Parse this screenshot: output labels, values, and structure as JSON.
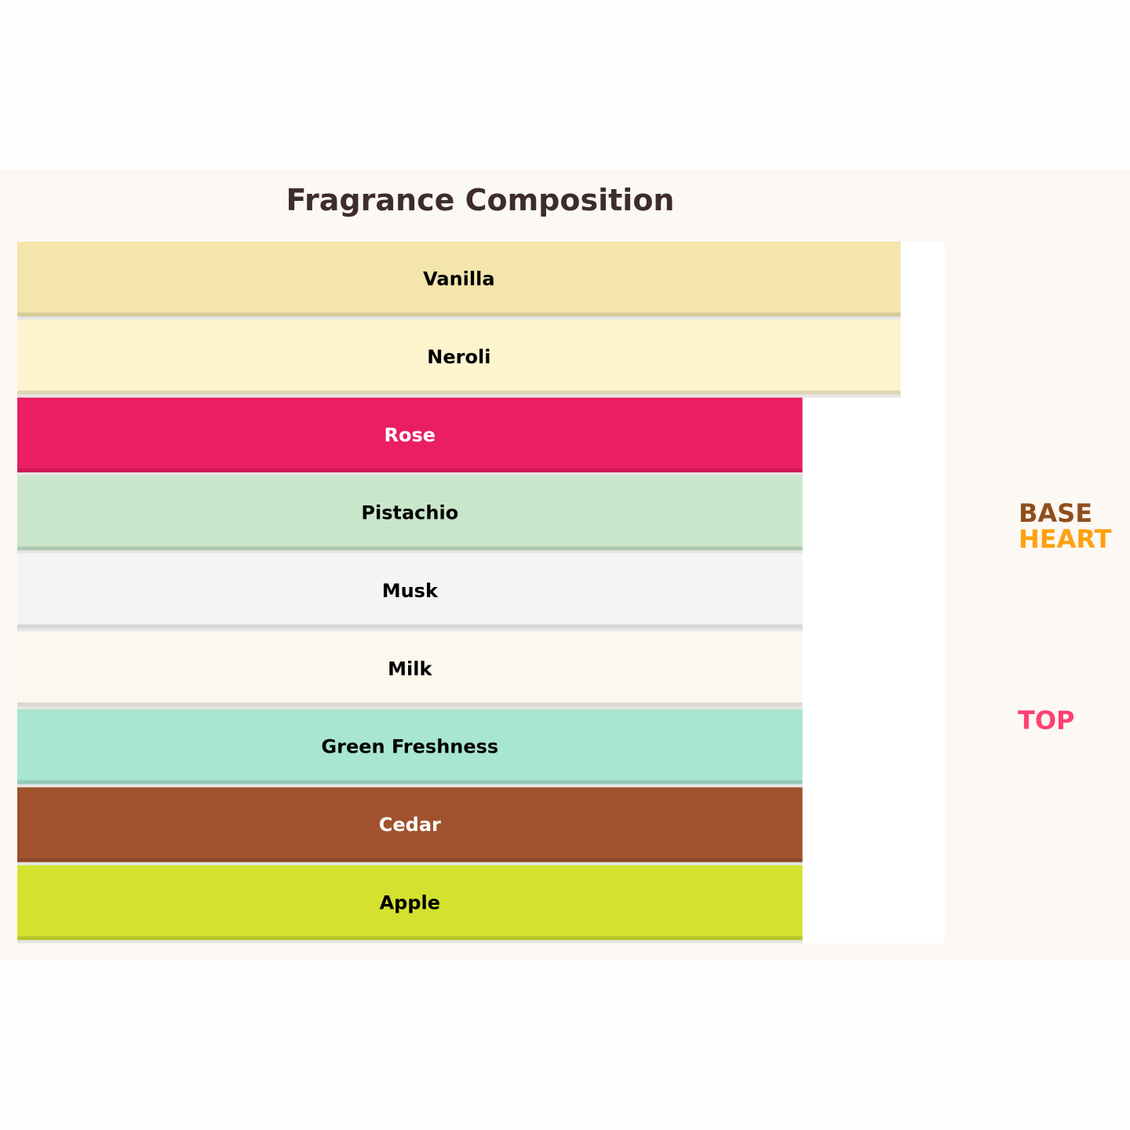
{
  "chart_data": {
    "type": "bar",
    "orientation": "horizontal",
    "title": "Fragrance Composition",
    "categories": [
      "Vanilla",
      "Neroli",
      "Rose",
      "Pistachio",
      "Musk",
      "Milk",
      "Green Freshness",
      "Cedar",
      "Apple"
    ],
    "values": [
      9,
      9,
      8,
      8,
      8,
      8,
      8,
      8,
      8
    ],
    "colors": [
      "#F3E5AB",
      "#FDF4CD",
      "#E91E63",
      "#C9E6CA",
      "#F4F4F4",
      "#FDF8EE",
      "#A8E6CF",
      "#A0522D",
      "#D4E22F"
    ],
    "label_colors": [
      "#000000",
      "#000000",
      "#ffffff",
      "#000000",
      "#000000",
      "#000000",
      "#000000",
      "#ffffff",
      "#000000"
    ],
    "xlim": [
      0,
      9.45
    ],
    "grid": false,
    "legend_labels": [
      {
        "text": "BASE",
        "color": "#8F4E1E"
      },
      {
        "text": "HEART",
        "color": "#FFA00F"
      },
      {
        "text": "TOP",
        "color": "#FF4070"
      }
    ]
  }
}
